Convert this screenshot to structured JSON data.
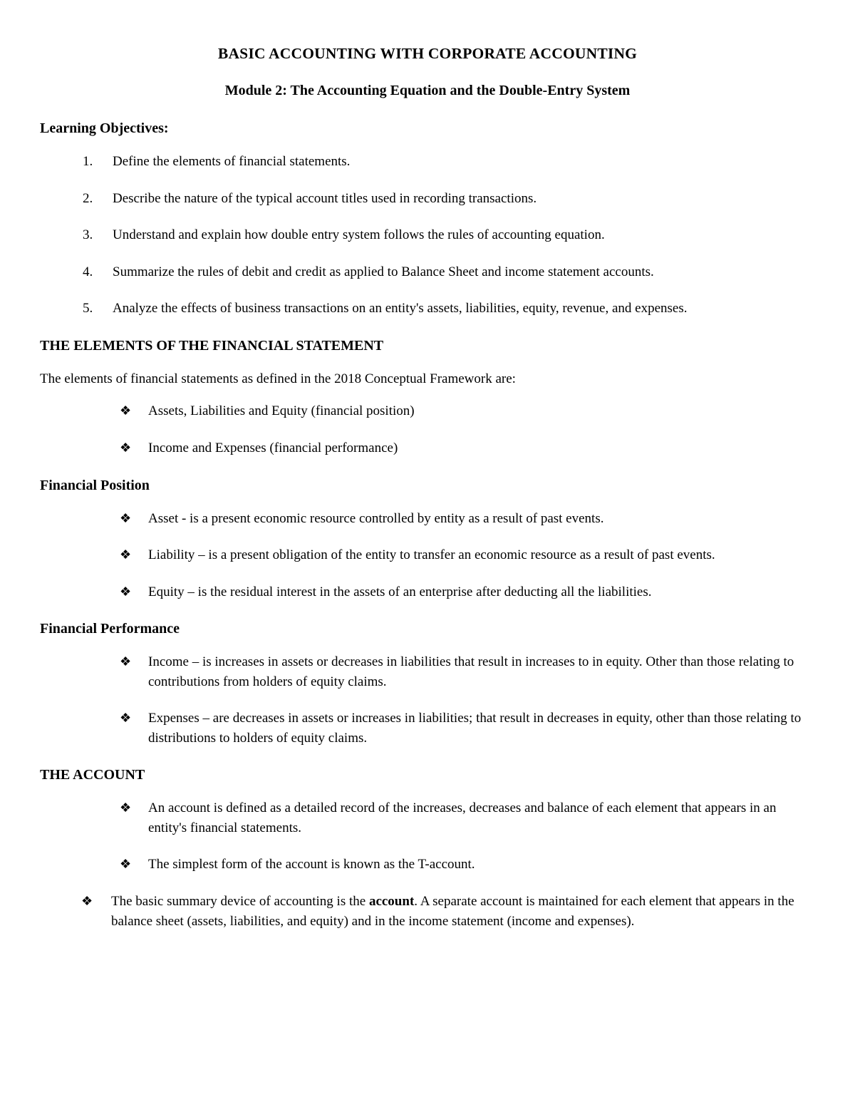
{
  "title_line1": "BASIC ACCOUNTING WITH CORPORATE ACCOUNTING",
  "title_line2": "Module 2: The Accounting Equation and the Double-Entry System",
  "learning_objectives_heading": "Learning Objectives:",
  "objectives": [
    "Define the elements of financial statements.",
    "Describe the nature of the typical account titles used in recording transactions.",
    "Understand and explain how double entry system follows the rules of accounting equation.",
    "Summarize the rules of debit and credit as applied to Balance Sheet and income statement accounts.",
    "Analyze the effects of business transactions on an entity's assets, liabilities, equity, revenue, and expenses."
  ],
  "elements_heading": "THE ELEMENTS OF THE FINANCIAL STATEMENT",
  "elements_intro": "The elements of financial statements as defined in the 2018 Conceptual Framework are:",
  "elements_bullets": [
    "Assets, Liabilities and Equity (financial position)",
    "Income and Expenses (financial performance)"
  ],
  "fin_position_heading": "Financial Position",
  "fin_position_bullets": [
    "Asset - is a present economic resource controlled by entity as a result of past events.",
    "Liability – is a present obligation of the entity to transfer an economic resource as a result of past events.",
    "Equity – is the residual interest in the assets of an enterprise after deducting all the liabilities."
  ],
  "fin_performance_heading": "Financial Performance",
  "fin_performance_bullets": [
    "Income – is increases in assets or decreases in liabilities that result in increases to in equity. Other than those relating to contributions from holders of equity claims.",
    "Expenses – are decreases in assets or increases in liabilities; that result in decreases in equity, other than those relating to distributions to holders of equity claims."
  ],
  "account_heading": "THE ACCOUNT",
  "account_bullets1": [
    "An account is defined as a detailed record of the increases, decreases and balance of each element that appears in an entity's financial statements.",
    "The simplest form of the account is known as the T-account."
  ],
  "account_summary_pre": "The basic summary device of accounting is the ",
  "account_summary_bold": "account",
  "account_summary_post": ". A separate account is maintained for each element that appears in the balance sheet (assets, liabilities, and equity) and in the income statement (income and expenses)."
}
